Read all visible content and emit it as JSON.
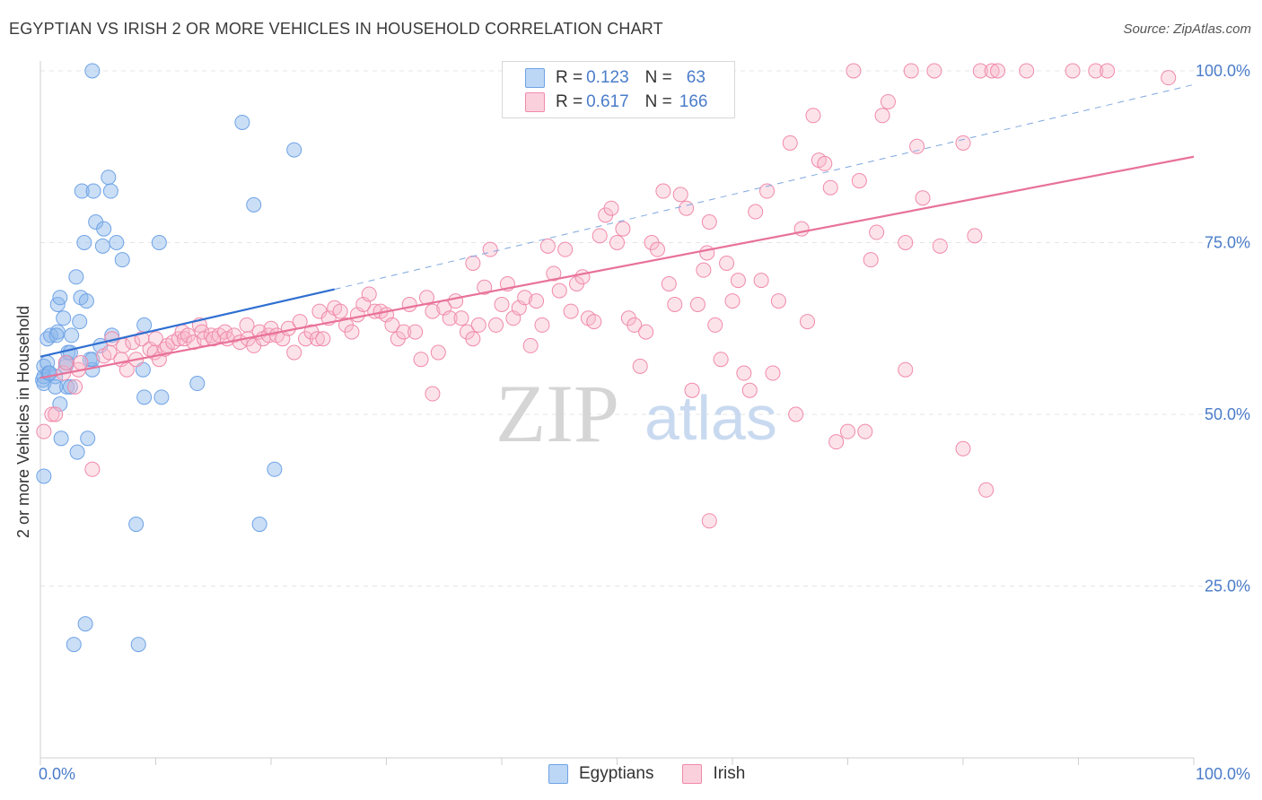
{
  "title": "EGYPTIAN VS IRISH 2 OR MORE VEHICLES IN HOUSEHOLD CORRELATION CHART",
  "source": "Source: ZipAtlas.com",
  "legend": {
    "rows": [
      {
        "r_label": "R = ",
        "r_value": "0.123",
        "n_label": "N = ",
        "n_value": "63",
        "color": "#a9c8f0"
      },
      {
        "r_label": "R = ",
        "r_value": "0.617",
        "n_label": "N = ",
        "n_value": "166",
        "color": "#f7b8cb"
      }
    ],
    "bottom": [
      {
        "label": "Egyptians",
        "color": "#a9c8f0"
      },
      {
        "label": "Irish",
        "color": "#f7b8cb"
      }
    ]
  },
  "chart_data": {
    "type": "scatter",
    "title": "EGYPTIAN VS IRISH 2 OR MORE VEHICLES IN HOUSEHOLD CORRELATION CHART",
    "xlabel": "",
    "ylabel": "2 or more Vehicles in Household",
    "xlim": [
      0,
      100
    ],
    "ylim": [
      0,
      102
    ],
    "x_tick_labels": [
      "0.0%",
      "100.0%"
    ],
    "y_tick_labels": [
      "25.0%",
      "50.0%",
      "75.0%",
      "100.0%"
    ],
    "y_ticks": [
      25,
      50,
      75,
      100
    ],
    "grid": true,
    "legend_position": "top-center",
    "watermark": "ZIPatlas",
    "colors": {
      "Egyptians": "#6fa3e6",
      "Irish": "#f08aab",
      "egy_line": "#2f6fd1",
      "irish_line": "#e8729a",
      "tick_label": "#4a7cc9"
    },
    "series": [
      {
        "name": "Egyptians",
        "points": [
          [
            0.2,
            55
          ],
          [
            0.3,
            55.5
          ],
          [
            0.3,
            57
          ],
          [
            0.3,
            54.5
          ],
          [
            0.3,
            41
          ],
          [
            0.6,
            61
          ],
          [
            0.6,
            57.5
          ],
          [
            0.7,
            56
          ],
          [
            0.9,
            61.5
          ],
          [
            1.3,
            55.5
          ],
          [
            1.3,
            54
          ],
          [
            1.5,
            62
          ],
          [
            1.5,
            66
          ],
          [
            1.7,
            67
          ],
          [
            1.7,
            51.5
          ],
          [
            1.8,
            46.5
          ],
          [
            2,
            64
          ],
          [
            2.2,
            57
          ],
          [
            2.3,
            54
          ],
          [
            2.3,
            57.5
          ],
          [
            2.4,
            59
          ],
          [
            2.6,
            59
          ],
          [
            2.6,
            54
          ],
          [
            2.7,
            61.5
          ],
          [
            3.1,
            70
          ],
          [
            3.2,
            44.5
          ],
          [
            3.4,
            63.5
          ],
          [
            3.5,
            67
          ],
          [
            3.6,
            82.5
          ],
          [
            3.8,
            75
          ],
          [
            3.9,
            19.5
          ],
          [
            4,
            66.5
          ],
          [
            4.1,
            46.5
          ],
          [
            4.3,
            58
          ],
          [
            4.5,
            56.5
          ],
          [
            4.5,
            58
          ],
          [
            4.5,
            100
          ],
          [
            4.6,
            82.5
          ],
          [
            4.8,
            78
          ],
          [
            5.2,
            60
          ],
          [
            5.4,
            74.5
          ],
          [
            5.5,
            77
          ],
          [
            5.9,
            84.5
          ],
          [
            6.1,
            82.5
          ],
          [
            6.2,
            61.5
          ],
          [
            6.6,
            75
          ],
          [
            7.1,
            72.5
          ],
          [
            8.3,
            34
          ],
          [
            8.5,
            16.5
          ],
          [
            8.9,
            56.5
          ],
          [
            9,
            52.5
          ],
          [
            9,
            63
          ],
          [
            10.3,
            75
          ],
          [
            10.5,
            52.5
          ],
          [
            13.6,
            54.5
          ],
          [
            17.5,
            92.5
          ],
          [
            18.5,
            80.5
          ],
          [
            19,
            34
          ],
          [
            20.3,
            42
          ],
          [
            22,
            88.5
          ],
          [
            2.9,
            16.5
          ],
          [
            1.4,
            61.5
          ],
          [
            0.8,
            56
          ]
        ]
      },
      {
        "name": "Irish",
        "points": [
          [
            0.3,
            47.5
          ],
          [
            1,
            50
          ],
          [
            1.3,
            50
          ],
          [
            2,
            56
          ],
          [
            2.2,
            57.5
          ],
          [
            3,
            54
          ],
          [
            3.3,
            56.5
          ],
          [
            3.5,
            57.5
          ],
          [
            4.5,
            42
          ],
          [
            5.5,
            58.5
          ],
          [
            6,
            59
          ],
          [
            6.2,
            61
          ],
          [
            7,
            58
          ],
          [
            7.2,
            60
          ],
          [
            7.5,
            56.5
          ],
          [
            8,
            60.5
          ],
          [
            8.3,
            58
          ],
          [
            8.8,
            61
          ],
          [
            9.5,
            59.5
          ],
          [
            9.9,
            59
          ],
          [
            10,
            61
          ],
          [
            10.3,
            58
          ],
          [
            10.8,
            59.5
          ],
          [
            11,
            60
          ],
          [
            11.5,
            60.5
          ],
          [
            12,
            61
          ],
          [
            12.3,
            62
          ],
          [
            12.5,
            61
          ],
          [
            12.8,
            61.5
          ],
          [
            13.3,
            60.5
          ],
          [
            13.8,
            63
          ],
          [
            14,
            62
          ],
          [
            14.2,
            61
          ],
          [
            14.8,
            61.5
          ],
          [
            15,
            61
          ],
          [
            15.5,
            61.5
          ],
          [
            16,
            62
          ],
          [
            16.2,
            61
          ],
          [
            16.8,
            61.5
          ],
          [
            17.3,
            60.5
          ],
          [
            17.9,
            63
          ],
          [
            18,
            61
          ],
          [
            18.5,
            60
          ],
          [
            19,
            62
          ],
          [
            19.3,
            61
          ],
          [
            19.8,
            61.5
          ],
          [
            20,
            62.5
          ],
          [
            20.5,
            61.5
          ],
          [
            21,
            61
          ],
          [
            21.5,
            62.5
          ],
          [
            22,
            59
          ],
          [
            22.5,
            63.5
          ],
          [
            23,
            61
          ],
          [
            23.5,
            62
          ],
          [
            24,
            61
          ],
          [
            24.2,
            65
          ],
          [
            24.5,
            61
          ],
          [
            25,
            64
          ],
          [
            25.5,
            65.5
          ],
          [
            26,
            65
          ],
          [
            26.5,
            63
          ],
          [
            27,
            62
          ],
          [
            27.5,
            64.5
          ],
          [
            28,
            66
          ],
          [
            28.5,
            67.5
          ],
          [
            29,
            65
          ],
          [
            29.5,
            65
          ],
          [
            30,
            64.5
          ],
          [
            30.5,
            63
          ],
          [
            31,
            61
          ],
          [
            31.5,
            62
          ],
          [
            32,
            66
          ],
          [
            32.5,
            62
          ],
          [
            33,
            58
          ],
          [
            33.5,
            67
          ],
          [
            34,
            65
          ],
          [
            34.5,
            59
          ],
          [
            35,
            65.5
          ],
          [
            35.5,
            64
          ],
          [
            36,
            66.5
          ],
          [
            36.5,
            64
          ],
          [
            37,
            62
          ],
          [
            37.5,
            72
          ],
          [
            38,
            63
          ],
          [
            38.5,
            68.5
          ],
          [
            39,
            74
          ],
          [
            39.5,
            63
          ],
          [
            40,
            66
          ],
          [
            40.5,
            69
          ],
          [
            41,
            64
          ],
          [
            41.5,
            65.5
          ],
          [
            42,
            67
          ],
          [
            42.5,
            60
          ],
          [
            43,
            66.5
          ],
          [
            43.5,
            63
          ],
          [
            44,
            74.5
          ],
          [
            44.5,
            70.5
          ],
          [
            45,
            68
          ],
          [
            45.5,
            74
          ],
          [
            46,
            65
          ],
          [
            46.5,
            69
          ],
          [
            47,
            70
          ],
          [
            47.5,
            64
          ],
          [
            48,
            63.5
          ],
          [
            48.5,
            76
          ],
          [
            49,
            79
          ],
          [
            49.5,
            80
          ],
          [
            50,
            75
          ],
          [
            50.5,
            77
          ],
          [
            51,
            64
          ],
          [
            51.5,
            63
          ],
          [
            52,
            57
          ],
          [
            52.5,
            62
          ],
          [
            53,
            75
          ],
          [
            53.5,
            74
          ],
          [
            54,
            82.5
          ],
          [
            54.5,
            69
          ],
          [
            55,
            66
          ],
          [
            55.5,
            82
          ],
          [
            56,
            80
          ],
          [
            56.5,
            53.5
          ],
          [
            57,
            66
          ],
          [
            57.5,
            71
          ],
          [
            57.8,
            73.5
          ],
          [
            58,
            78
          ],
          [
            58.5,
            63
          ],
          [
            59,
            58
          ],
          [
            59.5,
            72
          ],
          [
            60,
            66.5
          ],
          [
            60.5,
            69.5
          ],
          [
            61,
            56
          ],
          [
            61.5,
            53.5
          ],
          [
            62,
            79.5
          ],
          [
            62.5,
            69.5
          ],
          [
            63,
            82.5
          ],
          [
            63.5,
            56
          ],
          [
            64,
            66.5
          ],
          [
            65,
            89.5
          ],
          [
            65.5,
            50
          ],
          [
            66,
            77
          ],
          [
            66.5,
            63.5
          ],
          [
            67,
            93.5
          ],
          [
            67.5,
            87
          ],
          [
            68,
            86.5
          ],
          [
            68.5,
            83
          ],
          [
            69,
            46
          ],
          [
            70,
            47.5
          ],
          [
            71,
            84
          ],
          [
            71.5,
            47.5
          ],
          [
            72,
            72.5
          ],
          [
            72.5,
            76.5
          ],
          [
            73,
            93.5
          ],
          [
            73.5,
            95.5
          ],
          [
            75,
            75
          ],
          [
            75,
            56.5
          ],
          [
            76,
            89
          ],
          [
            76.5,
            81.5
          ],
          [
            78,
            74.5
          ],
          [
            80,
            45
          ],
          [
            80,
            89.5
          ],
          [
            81,
            76
          ],
          [
            82,
            39
          ],
          [
            70.5,
            100
          ],
          [
            75.5,
            100
          ],
          [
            77.5,
            100
          ],
          [
            81.5,
            100
          ],
          [
            82.5,
            100
          ],
          [
            83,
            100
          ],
          [
            85.5,
            100
          ],
          [
            89.5,
            100
          ],
          [
            91.5,
            100
          ],
          [
            92.5,
            100
          ],
          [
            97.8,
            99
          ],
          [
            58,
            34.5
          ],
          [
            37.5,
            61
          ],
          [
            34,
            53
          ]
        ]
      }
    ],
    "trend_lines": [
      {
        "series": "Egyptians",
        "x": [
          0,
          25.5
        ],
        "y": [
          58.4,
          68.2
        ],
        "style": "solid"
      },
      {
        "series": "Egyptians",
        "x": [
          25.5,
          100
        ],
        "y": [
          68.2,
          98
        ],
        "style": "dashed"
      },
      {
        "series": "Irish",
        "x": [
          0,
          100
        ],
        "y": [
          55.3,
          87.5
        ],
        "style": "solid"
      }
    ]
  }
}
